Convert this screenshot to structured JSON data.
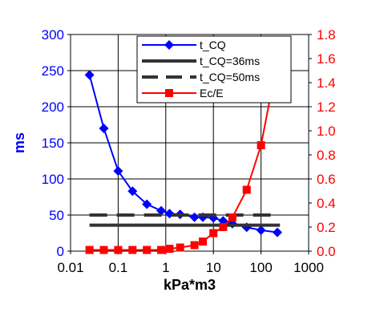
{
  "chart_data": {
    "type": "line",
    "title": "",
    "xlabel": "kPa*m3",
    "ylabel": "ms",
    "y2label": "",
    "x_scale": "log",
    "xlim": [
      0.01,
      1000
    ],
    "ylim": [
      0,
      300
    ],
    "y2lim": [
      0,
      1.8
    ],
    "x_ticks": [
      0.01,
      0.1,
      1,
      10,
      100,
      1000
    ],
    "x_tick_labels": [
      "0.01",
      "0.1",
      "1",
      "10",
      "100",
      "1000"
    ],
    "y_ticks": [
      0,
      50,
      100,
      150,
      200,
      250,
      300
    ],
    "y_tick_labels": [
      "0",
      "50",
      "100",
      "150",
      "200",
      "250",
      "300"
    ],
    "y2_ticks": [
      0,
      0.2,
      0.4,
      0.6,
      0.8,
      1.0,
      1.2,
      1.4,
      1.6,
      1.8
    ],
    "y2_tick_labels": [
      "0.0",
      "0.2",
      "0.4",
      "0.6",
      "0.8",
      "1.0",
      "1.2",
      "1.4",
      "1.6",
      "1.8"
    ],
    "grid": true,
    "legend_position": "top-right",
    "series": [
      {
        "name": "t_CQ",
        "axis": "left",
        "color": "#0000ff",
        "marker": "diamond",
        "x": [
          0.025,
          0.05,
          0.1,
          0.2,
          0.4,
          0.8,
          1.2,
          2,
          4,
          6,
          10,
          16,
          25,
          50,
          100,
          220
        ],
        "y": [
          244,
          170,
          111,
          83,
          65,
          56,
          52,
          51,
          47,
          47,
          46,
          42,
          38,
          33,
          29,
          26
        ]
      },
      {
        "name": "t_CQ=36ms",
        "axis": "left",
        "color": "#333333",
        "style": "solid",
        "x": [
          0.025,
          250
        ],
        "y": [
          36,
          36
        ]
      },
      {
        "name": "t_CQ=50ms",
        "axis": "left",
        "color": "#333333",
        "style": "dashed",
        "x": [
          0.025,
          250
        ],
        "y": [
          50,
          50
        ]
      },
      {
        "name": "Ec/E",
        "axis": "right",
        "color": "#ff0000",
        "marker": "square",
        "x": [
          0.025,
          0.05,
          0.1,
          0.2,
          0.4,
          0.8,
          1.2,
          2,
          4,
          6,
          10,
          16,
          25,
          50,
          100,
          220
        ],
        "y": [
          0.01,
          0.01,
          0.01,
          0.01,
          0.01,
          0.01,
          0.02,
          0.03,
          0.05,
          0.08,
          0.15,
          0.2,
          0.28,
          0.51,
          0.88,
          1.58
        ]
      }
    ]
  }
}
